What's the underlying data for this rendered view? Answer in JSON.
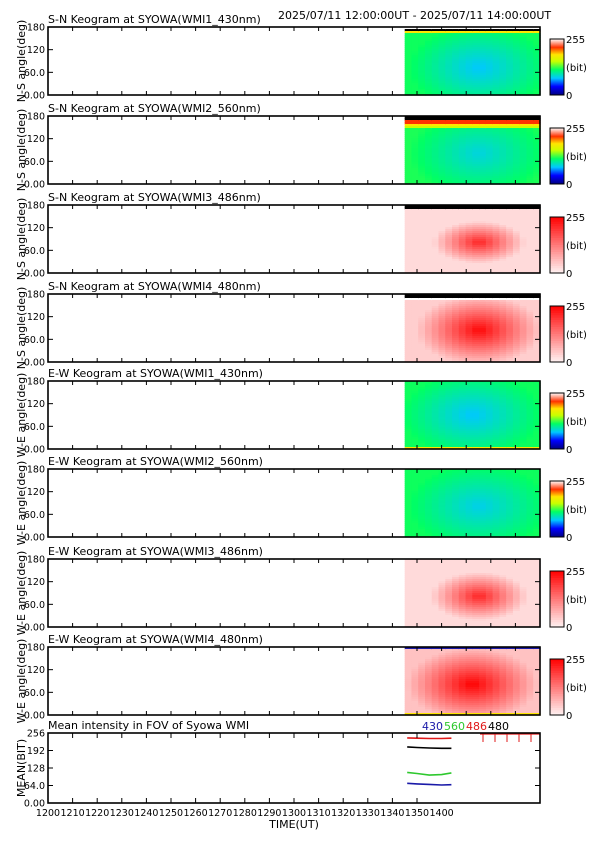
{
  "header": {
    "time_range": "2025/07/11 12:00:00UT - 2025/07/11 14:00:00UT"
  },
  "colors": {
    "wl_430": "#1a1aa8",
    "wl_560": "#2ec82e",
    "wl_486": "#e01818",
    "wl_480": "#000000"
  },
  "colorbar": {
    "max_label": "255",
    "unit_label": "(bit)",
    "min_label": "0"
  },
  "chart_data": [
    {
      "type": "heatmap",
      "title": "S-N Keogram at SYOWA(WMI1_430nm)",
      "ylabel": "N-S angle(deg)",
      "yticks": [
        "180",
        "120",
        "60.0",
        "0.00"
      ],
      "ylim": [
        0,
        180
      ],
      "xlim": [
        1200,
        1400
      ],
      "data_start": 1345,
      "palette": "rainbow",
      "profile": "sn430",
      "colorbar_range": [
        0,
        255
      ]
    },
    {
      "type": "heatmap",
      "title": "S-N Keogram at SYOWA(WMI2_560nm)",
      "ylabel": "N-S angle(deg)",
      "yticks": [
        "180",
        "120",
        "60.0",
        "0.00"
      ],
      "ylim": [
        0,
        180
      ],
      "xlim": [
        1200,
        1400
      ],
      "data_start": 1345,
      "palette": "rainbow",
      "profile": "sn560",
      "colorbar_range": [
        0,
        255
      ]
    },
    {
      "type": "heatmap",
      "title": "S-N Keogram at SYOWA(WMI3_486nm)",
      "ylabel": "N-S angle(deg)",
      "yticks": [
        "180",
        "120",
        "60.0",
        "0.00"
      ],
      "ylim": [
        0,
        180
      ],
      "xlim": [
        1200,
        1400
      ],
      "data_start": 1345,
      "palette": "red",
      "profile": "sn486",
      "colorbar_range": [
        0,
        255
      ]
    },
    {
      "type": "heatmap",
      "title": "S-N Keogram at SYOWA(WMI4_480nm)",
      "ylabel": "N-S angle(deg)",
      "yticks": [
        "180",
        "120",
        "60.0",
        "0.00"
      ],
      "ylim": [
        0,
        180
      ],
      "xlim": [
        1200,
        1400
      ],
      "data_start": 1345,
      "palette": "red",
      "profile": "sn480",
      "colorbar_range": [
        0,
        255
      ]
    },
    {
      "type": "heatmap",
      "title": "E-W Keogram at SYOWA(WMI1_430nm)",
      "ylabel": "W-E angle(deg)",
      "yticks": [
        "180",
        "120",
        "60.0",
        "0.00"
      ],
      "ylim": [
        0,
        180
      ],
      "xlim": [
        1200,
        1400
      ],
      "data_start": 1345,
      "palette": "rainbow",
      "profile": "ew430",
      "colorbar_range": [
        0,
        255
      ]
    },
    {
      "type": "heatmap",
      "title": "E-W Keogram at SYOWA(WMI2_560nm)",
      "ylabel": "W-E angle(deg)",
      "yticks": [
        "180",
        "120",
        "60.0",
        "0.00"
      ],
      "ylim": [
        0,
        180
      ],
      "xlim": [
        1200,
        1400
      ],
      "data_start": 1345,
      "palette": "rainbow",
      "profile": "ew560",
      "colorbar_range": [
        0,
        255
      ]
    },
    {
      "type": "heatmap",
      "title": "E-W Keogram at SYOWA(WMI3_486nm)",
      "ylabel": "W-E angle(deg)",
      "yticks": [
        "180",
        "120",
        "60.0",
        "0.00"
      ],
      "ylim": [
        0,
        180
      ],
      "xlim": [
        1200,
        1400
      ],
      "data_start": 1345,
      "palette": "red",
      "profile": "ew486",
      "colorbar_range": [
        0,
        255
      ]
    },
    {
      "type": "heatmap",
      "title": "E-W Keogram at SYOWA(WMI4_480nm)",
      "ylabel": "W-E angle(deg)",
      "yticks": [
        "180",
        "120",
        "60.0",
        "0.00"
      ],
      "ylim": [
        0,
        180
      ],
      "xlim": [
        1200,
        1400
      ],
      "data_start": 1345,
      "palette": "red",
      "profile": "ew480",
      "colorbar_range": [
        0,
        255
      ]
    },
    {
      "type": "line",
      "title": "Mean intensity in FOV of Syowa WMI",
      "ylabel": "MEAN(BIT)",
      "xlabel": "TIME(UT)",
      "yticks": [
        "256",
        "192",
        "128",
        "64.0",
        "0.00"
      ],
      "ylim": [
        0,
        256
      ],
      "xlim": [
        1200,
        1400
      ],
      "xticks": [
        "1200",
        "1210",
        "1220",
        "1230",
        "1240",
        "1250",
        "1260",
        "1270",
        "1280",
        "1290",
        "1300",
        "1310",
        "1320",
        "1330",
        "1340",
        "1350",
        "1400"
      ],
      "legend": [
        "430",
        "560",
        "486",
        "480"
      ],
      "series": [
        {
          "name": "430",
          "color": "#1a1aa8",
          "x": [
            1346,
            1350,
            1355,
            1360,
            1364
          ],
          "y": [
            72,
            70,
            68,
            66,
            67
          ]
        },
        {
          "name": "560",
          "color": "#2ec82e",
          "x": [
            1346,
            1350,
            1355,
            1360,
            1364
          ],
          "y": [
            112,
            108,
            102,
            104,
            110
          ]
        },
        {
          "name": "486",
          "color": "#e01818",
          "x": [
            1346,
            1350,
            1355,
            1360,
            1364
          ],
          "y": [
            238,
            237,
            236,
            236,
            237
          ]
        },
        {
          "name": "480",
          "color": "#000000",
          "x": [
            1346,
            1350,
            1355,
            1360,
            1364
          ],
          "y": [
            205,
            203,
            201,
            200,
            200
          ]
        }
      ]
    }
  ]
}
